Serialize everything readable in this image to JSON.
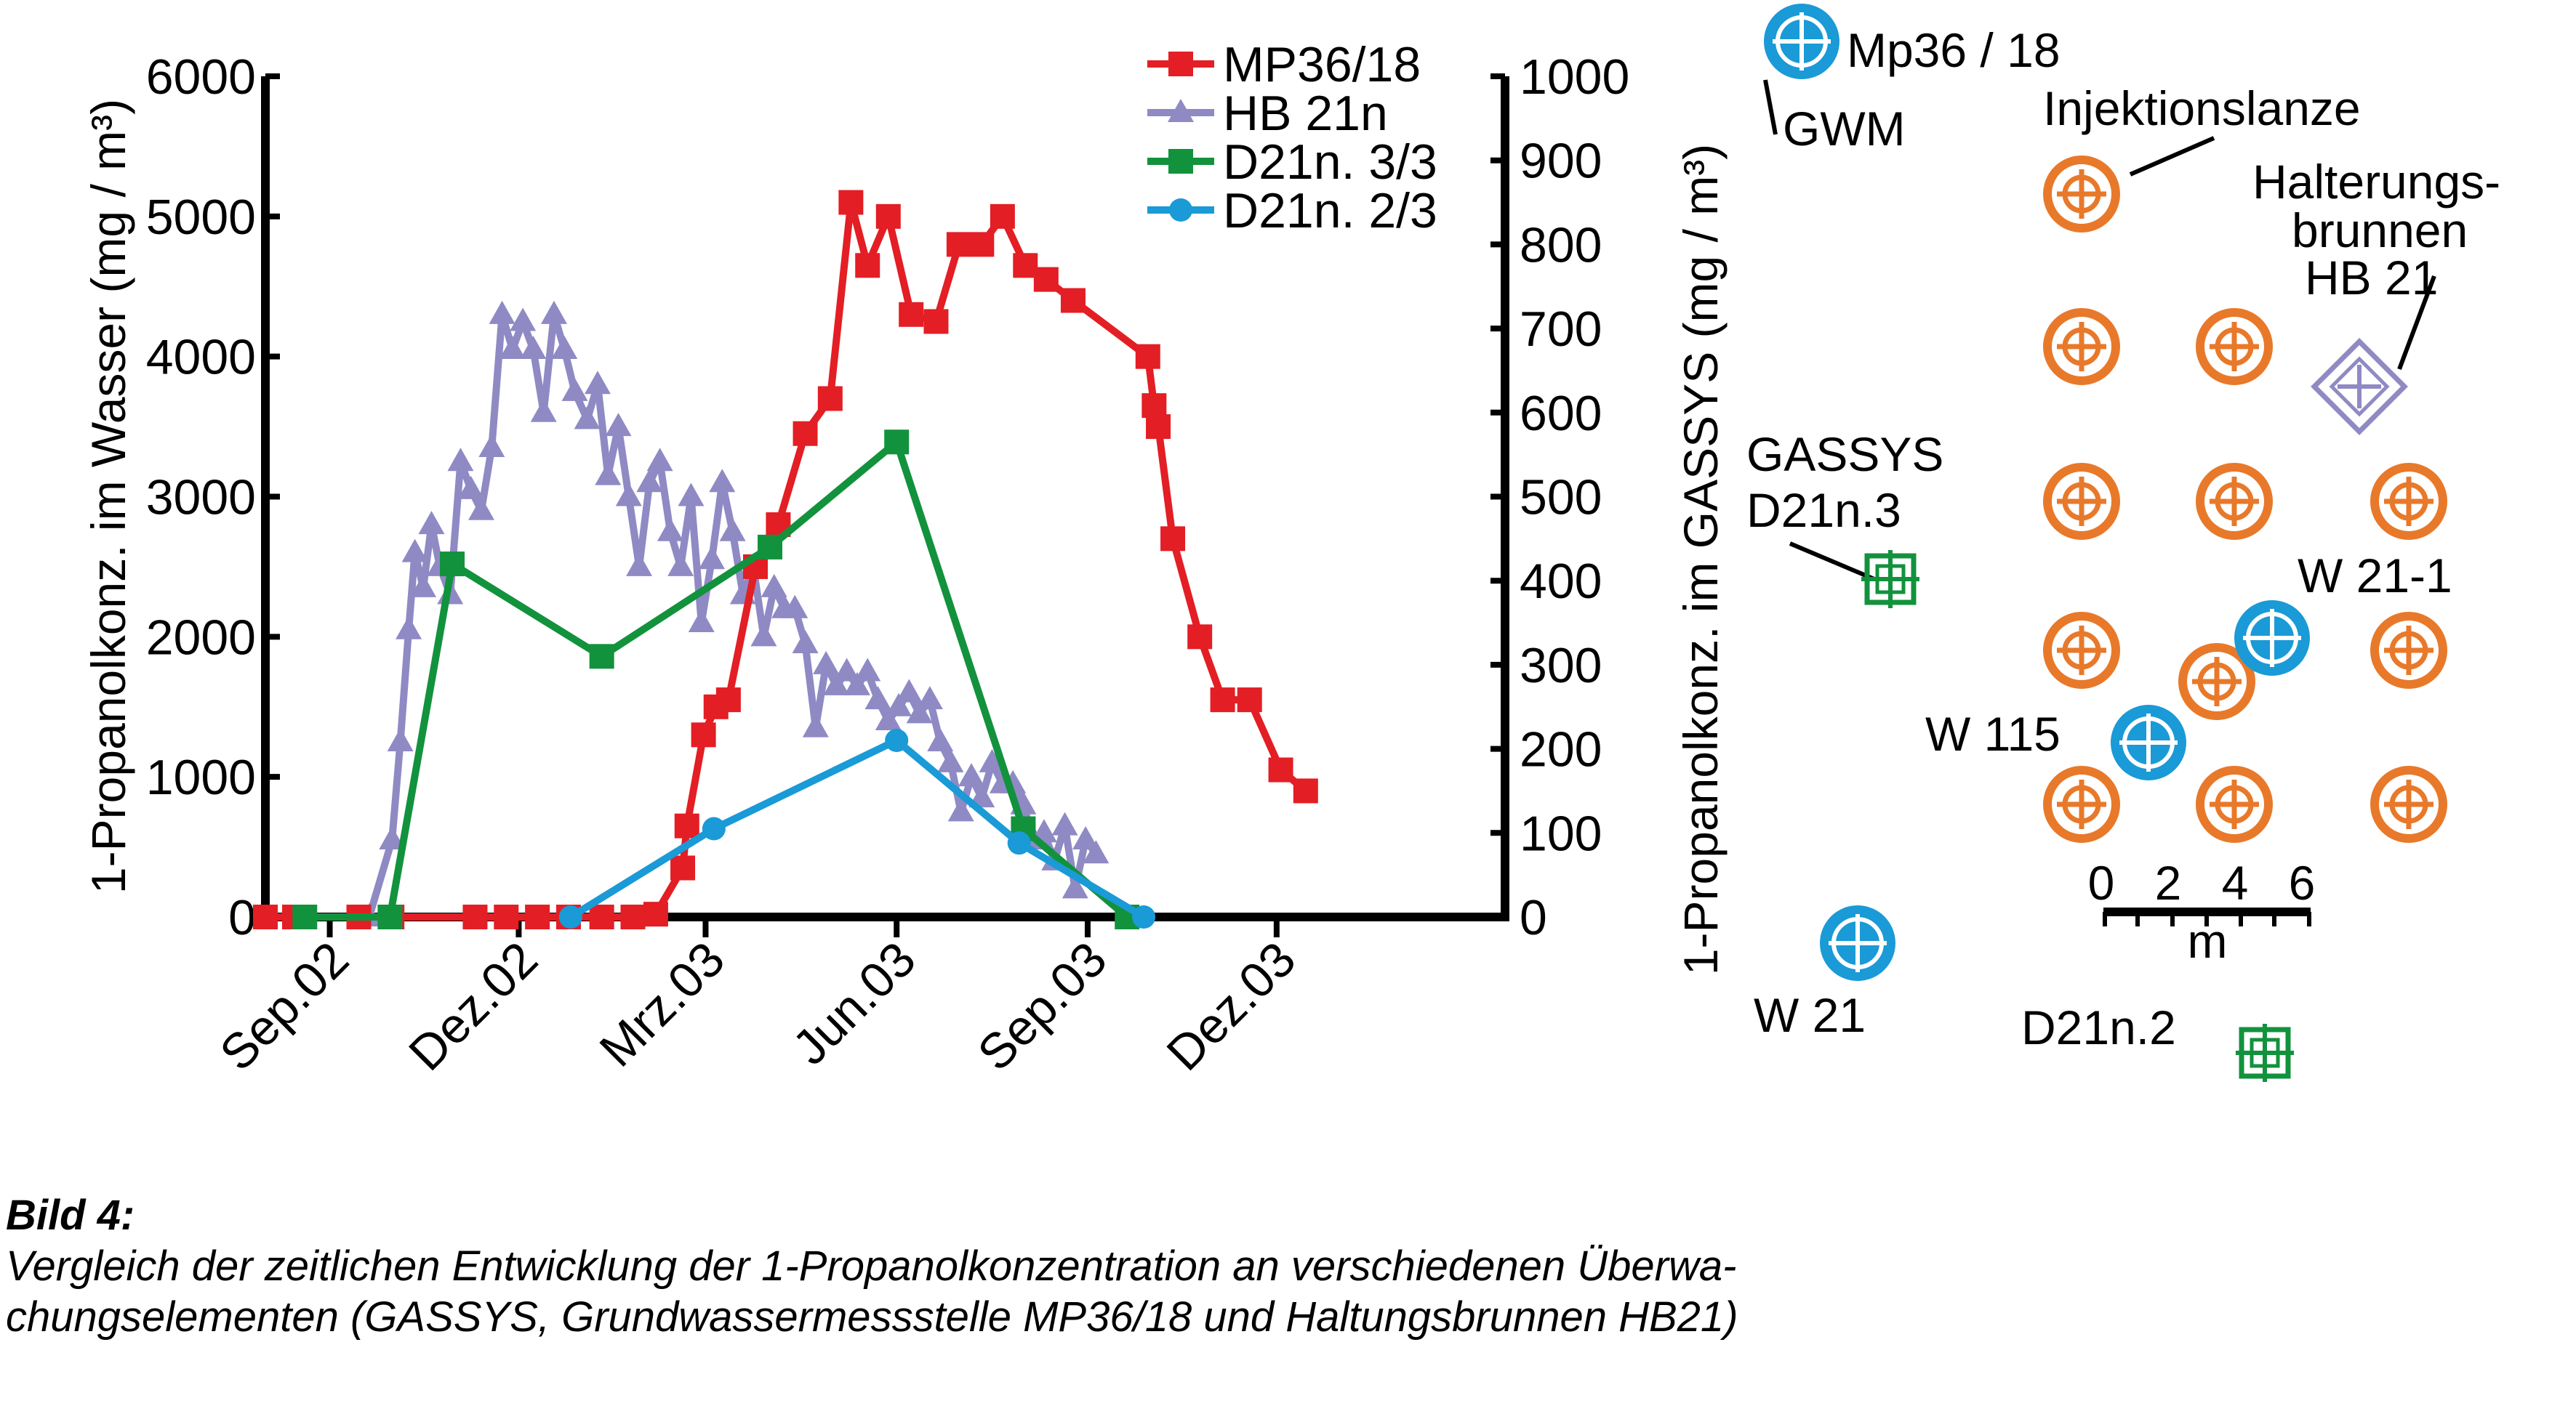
{
  "chart_data": {
    "type": "line",
    "xlabel": "",
    "ylabel_left": "1-Propanolkonz. im Wasser (mg / m³)",
    "ylabel_right": "1-Propanolkonz. im GASSYS (mg / m³)",
    "x_ticks": [
      "Sep.02",
      "Dez.02",
      "Mrz.03",
      "Jun.03",
      "Sep.03",
      "Dez.03"
    ],
    "xlim": [
      "2002-08-01",
      "2004-03-20"
    ],
    "ylim_left": [
      0,
      6000
    ],
    "ylim_right": [
      0,
      1000
    ],
    "yticks_left": [
      "0",
      "1000",
      "2000",
      "3000",
      "4000",
      "5000",
      "6000"
    ],
    "yticks_right": [
      "0",
      "100",
      "200",
      "300",
      "400",
      "500",
      "600",
      "700",
      "800",
      "900",
      "1000"
    ],
    "grid": false,
    "legend_position": "top-right",
    "series": [
      {
        "name": "MP36/18",
        "axis": "left",
        "color": "#e31e24",
        "marker": "square",
        "points": [
          [
            "2002-08-01",
            0
          ],
          [
            "2002-08-15",
            0
          ],
          [
            "2002-09-15",
            0
          ],
          [
            "2002-10-01",
            0
          ],
          [
            "2002-11-10",
            0
          ],
          [
            "2002-11-25",
            0
          ],
          [
            "2002-12-10",
            0
          ],
          [
            "2002-12-25",
            0
          ],
          [
            "2003-01-10",
            0
          ],
          [
            "2003-01-25",
            0
          ],
          [
            "2003-02-05",
            20
          ],
          [
            "2003-02-18",
            350
          ],
          [
            "2003-02-20",
            650
          ],
          [
            "2003-02-28",
            1300
          ],
          [
            "2003-03-06",
            1500
          ],
          [
            "2003-03-12",
            1550
          ],
          [
            "2003-03-25",
            2500
          ],
          [
            "2003-04-05",
            2800
          ],
          [
            "2003-04-18",
            3450
          ],
          [
            "2003-04-30",
            3700
          ],
          [
            "2003-05-10",
            5100
          ],
          [
            "2003-05-18",
            4650
          ],
          [
            "2003-05-28",
            5000
          ],
          [
            "2003-06-08",
            4300
          ],
          [
            "2003-06-20",
            4250
          ],
          [
            "2003-07-01",
            4800
          ],
          [
            "2003-07-12",
            4800
          ],
          [
            "2003-07-22",
            5000
          ],
          [
            "2003-08-02",
            4650
          ],
          [
            "2003-08-12",
            4550
          ],
          [
            "2003-08-25",
            4400
          ],
          [
            "2003-09-30",
            4000
          ],
          [
            "2003-10-03",
            3650
          ],
          [
            "2003-10-05",
            3500
          ],
          [
            "2003-10-12",
            2700
          ],
          [
            "2003-10-25",
            2000
          ],
          [
            "2003-11-05",
            1550
          ],
          [
            "2003-11-18",
            1550
          ],
          [
            "2003-12-03",
            1050
          ],
          [
            "2003-12-15",
            900
          ]
        ]
      },
      {
        "name": "HB 21n",
        "axis": "left",
        "color": "#8f8ac4",
        "marker": "triangle",
        "points": [
          [
            "2002-09-20",
            0
          ],
          [
            "2002-10-01",
            550
          ],
          [
            "2002-10-05",
            1250
          ],
          [
            "2002-10-09",
            2050
          ],
          [
            "2002-10-12",
            2600
          ],
          [
            "2002-10-16",
            2350
          ],
          [
            "2002-10-20",
            2800
          ],
          [
            "2002-10-24",
            2500
          ],
          [
            "2002-10-29",
            2300
          ],
          [
            "2002-11-03",
            3250
          ],
          [
            "2002-11-08",
            3050
          ],
          [
            "2002-11-13",
            2900
          ],
          [
            "2002-11-18",
            3350
          ],
          [
            "2002-11-23",
            4300
          ],
          [
            "2002-11-28",
            4050
          ],
          [
            "2002-12-03",
            4250
          ],
          [
            "2002-12-08",
            4050
          ],
          [
            "2002-12-13",
            3600
          ],
          [
            "2002-12-18",
            4300
          ],
          [
            "2002-12-23",
            4050
          ],
          [
            "2002-12-28",
            3750
          ],
          [
            "2003-01-03",
            3550
          ],
          [
            "2003-01-08",
            3800
          ],
          [
            "2003-01-13",
            3150
          ],
          [
            "2003-01-18",
            3500
          ],
          [
            "2003-01-23",
            3000
          ],
          [
            "2003-01-28",
            2500
          ],
          [
            "2003-02-02",
            3100
          ],
          [
            "2003-02-07",
            3250
          ],
          [
            "2003-02-12",
            2750
          ],
          [
            "2003-02-17",
            2500
          ],
          [
            "2003-02-22",
            3000
          ],
          [
            "2003-02-27",
            2100
          ],
          [
            "2003-03-04",
            2550
          ],
          [
            "2003-03-09",
            3100
          ],
          [
            "2003-03-14",
            2750
          ],
          [
            "2003-03-19",
            2300
          ],
          [
            "2003-03-24",
            2500
          ],
          [
            "2003-03-29",
            2000
          ],
          [
            "2003-04-03",
            2350
          ],
          [
            "2003-04-08",
            2200
          ],
          [
            "2003-04-13",
            2200
          ],
          [
            "2003-04-18",
            1950
          ],
          [
            "2003-04-23",
            1350
          ],
          [
            "2003-04-28",
            1800
          ],
          [
            "2003-05-03",
            1650
          ],
          [
            "2003-05-08",
            1750
          ],
          [
            "2003-05-13",
            1650
          ],
          [
            "2003-05-18",
            1750
          ],
          [
            "2003-05-23",
            1550
          ],
          [
            "2003-05-28",
            1400
          ],
          [
            "2003-06-02",
            1500
          ],
          [
            "2003-06-07",
            1600
          ],
          [
            "2003-06-12",
            1450
          ],
          [
            "2003-06-17",
            1550
          ],
          [
            "2003-06-22",
            1250
          ],
          [
            "2003-06-27",
            1100
          ],
          [
            "2003-07-02",
            750
          ],
          [
            "2003-07-07",
            1000
          ],
          [
            "2003-07-12",
            850
          ],
          [
            "2003-07-17",
            1100
          ],
          [
            "2003-07-22",
            950
          ],
          [
            "2003-07-27",
            950
          ],
          [
            "2003-08-01",
            800
          ],
          [
            "2003-08-06",
            550
          ],
          [
            "2003-08-11",
            600
          ],
          [
            "2003-08-16",
            400
          ],
          [
            "2003-08-21",
            650
          ],
          [
            "2003-08-26",
            200
          ],
          [
            "2003-08-31",
            550
          ],
          [
            "2003-09-05",
            450
          ]
        ]
      },
      {
        "name": "D21n. 3/3",
        "axis": "right",
        "color": "#12923c",
        "marker": "square",
        "points": [
          [
            "2002-08-20",
            0
          ],
          [
            "2002-09-30",
            0
          ],
          [
            "2002-10-30",
            420
          ],
          [
            "2003-01-10",
            310
          ],
          [
            "2003-04-01",
            440
          ],
          [
            "2003-06-01",
            565
          ],
          [
            "2003-08-01",
            105
          ],
          [
            "2003-09-20",
            0
          ]
        ]
      },
      {
        "name": "D21n. 2/3",
        "axis": "right",
        "color": "#1a9ad6",
        "marker": "circle",
        "points": [
          [
            "2002-12-26",
            0
          ],
          [
            "2003-03-05",
            105
          ],
          [
            "2003-06-01",
            210
          ],
          [
            "2003-07-30",
            88
          ],
          [
            "2003-09-28",
            0
          ]
        ]
      }
    ]
  },
  "map": {
    "labels": {
      "mp36": "Mp36 / 18",
      "gwm": "GWM",
      "injektionslanze": "Injektionslanze",
      "halterung_1": "Halterungs-",
      "halterung_2": "brunnen",
      "halterung_3": "HB 21",
      "gassys_1": "GASSYS",
      "gassys_2": "D21n.3",
      "w211": "W 21-1",
      "w115": "W 115",
      "w21": "W 21",
      "d21n2": "D21n.2",
      "scale_ticks": [
        "0",
        "2",
        "4",
        "6"
      ],
      "scale_unit": "m"
    },
    "colors": {
      "lance": "#e8792a",
      "well": "#1a9ad6",
      "gassys": "#12923c",
      "hb": "#8f8ac4"
    }
  },
  "caption": {
    "title": "Bild 4:",
    "line1": "Vergleich der zeitlichen Entwicklung der 1-Propanolkonzentration an verschiedenen Überwa-",
    "line2": "chungselementen (GASSYS, Grundwassermessstelle MP36/18 und Haltungsbrunnen HB21)"
  }
}
